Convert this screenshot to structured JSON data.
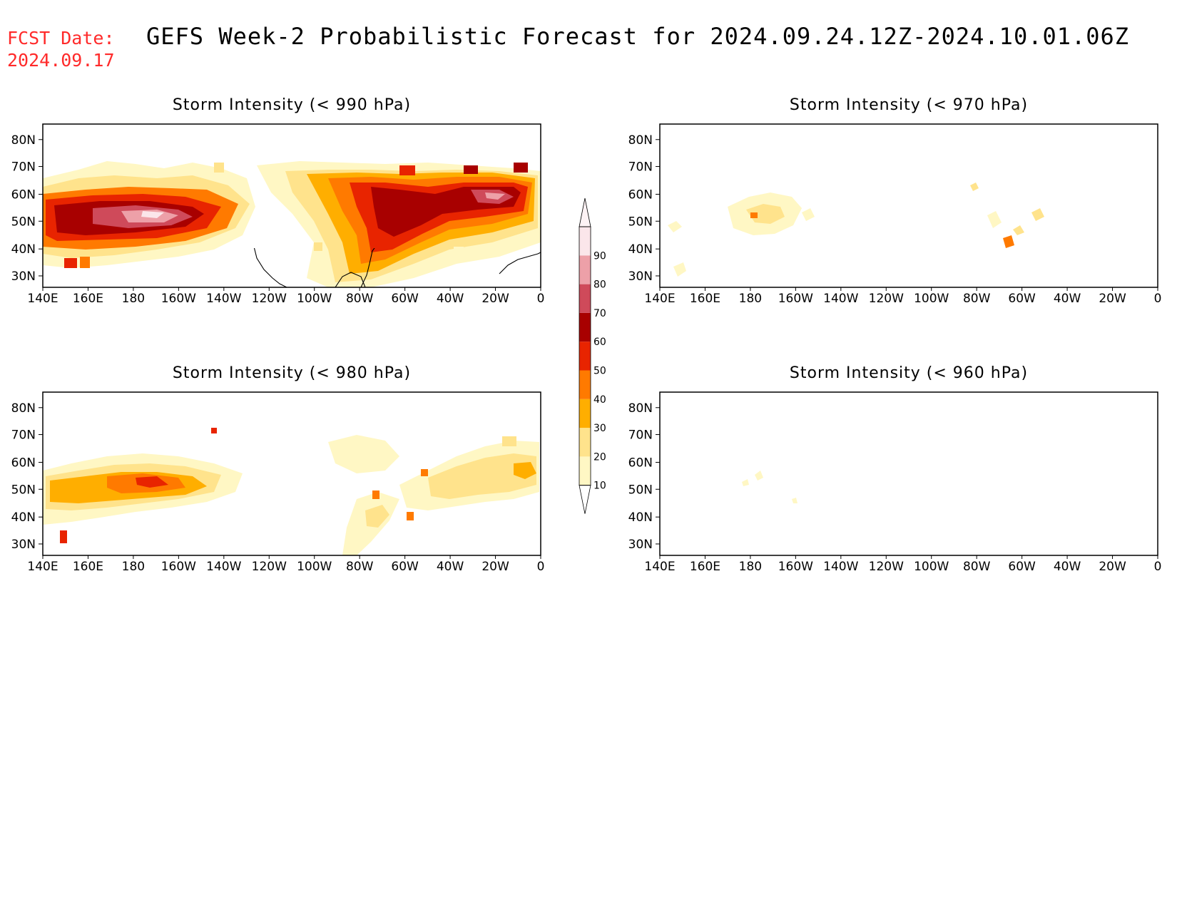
{
  "header": {
    "fcst_label": "FCST Date:",
    "fcst_date": "2024.09.17",
    "title": "GEFS Week-2 Probabilistic Forecast for 2024.09.24.12Z-2024.10.01.06Z"
  },
  "axes": {
    "lon_labels": [
      "140E",
      "160E",
      "180",
      "160W",
      "140W",
      "120W",
      "100W",
      "80W",
      "60W",
      "40W",
      "20W",
      "0"
    ],
    "lat_labels": [
      "80N",
      "70N",
      "60N",
      "50N",
      "40N",
      "30N"
    ]
  },
  "panels": [
    {
      "title": "Storm Intensity (< 990 hPa)"
    },
    {
      "title": "Storm Intensity (< 970 hPa)"
    },
    {
      "title": "Storm Intensity (< 980 hPa)"
    },
    {
      "title": "Storm Intensity (< 960 hPa)"
    }
  ],
  "colorbar": {
    "labels": [
      "10",
      "20",
      "30",
      "40",
      "50",
      "60",
      "70",
      "80",
      "90"
    ],
    "colors": [
      "#fff7c4",
      "#ffe38c",
      "#ffae00",
      "#ff7a00",
      "#e82400",
      "#a80000",
      "#cf4a5a",
      "#eda0a8",
      "#fbe6ea"
    ]
  }
}
